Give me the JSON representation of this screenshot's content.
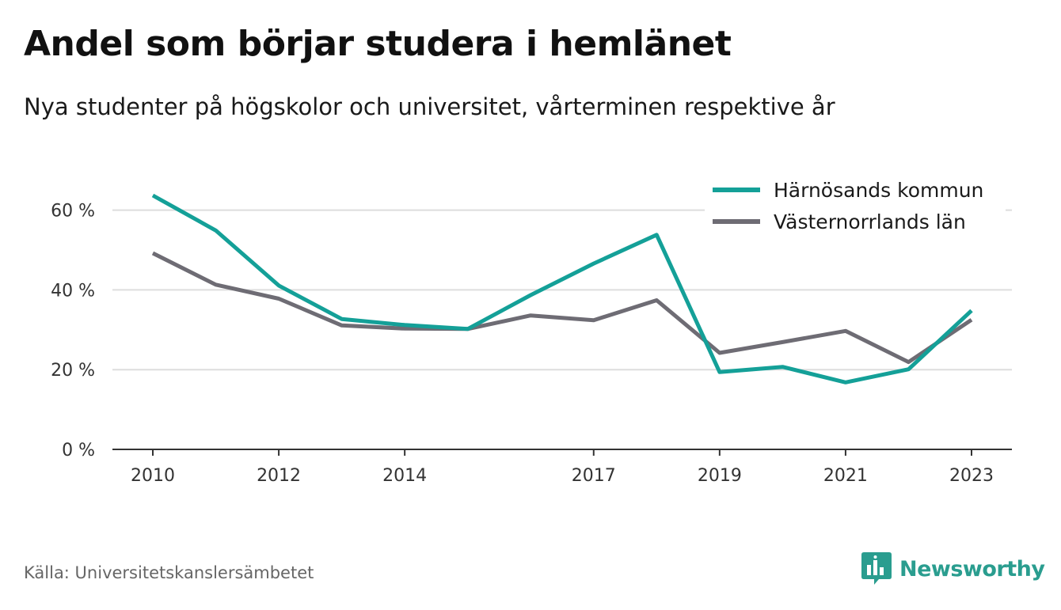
{
  "header": {
    "title": "Andel som börjar studera i hemlänet",
    "subtitle": "Nya studenter på högskolor och universitet, vårterminen respektive år"
  },
  "footer": {
    "source": "Källa: Universitetskanslersämbetet",
    "brand": "Newsworthy",
    "brand_color": "#2a9d8f",
    "brand_icon": "bar-chart-icon"
  },
  "chart_data": {
    "type": "line",
    "x": [
      2010,
      2011,
      2012,
      2013,
      2014,
      2015,
      2016,
      2017,
      2018,
      2019,
      2020,
      2021,
      2022,
      2023
    ],
    "x_tick_values": [
      2010,
      2012,
      2014,
      2017,
      2019,
      2021,
      2023
    ],
    "x_tick_labels": [
      "2010",
      "2012",
      "2014",
      "2017",
      "2019",
      "2021",
      "2023"
    ],
    "ylim": [
      0,
      70
    ],
    "y_tick_values": [
      0,
      20,
      40,
      60
    ],
    "y_tick_labels": [
      "0 %",
      "20 %",
      "40 %",
      "60 %"
    ],
    "grid": true,
    "legend_position": "top-right",
    "series": [
      {
        "name": "Härnösands kommun",
        "color": "#14a098",
        "values": [
          63.7,
          54.9,
          41.1,
          32.7,
          31.2,
          30.2,
          38.7,
          46.6,
          53.8,
          19.4,
          20.7,
          16.8,
          20.1,
          34.8
        ]
      },
      {
        "name": "Västernorrlands län",
        "color": "#6e6c74",
        "values": [
          49.2,
          41.3,
          37.8,
          31.1,
          30.3,
          30.2,
          33.6,
          32.4,
          37.4,
          24.2,
          26.9,
          29.7,
          21.9,
          32.5
        ]
      }
    ]
  }
}
